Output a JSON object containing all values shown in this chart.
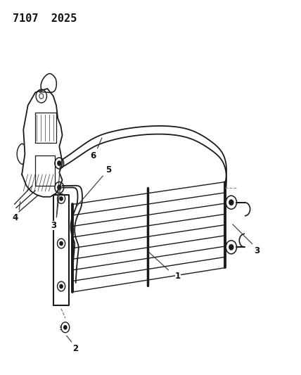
{
  "title": "7107  2025",
  "title_fontsize": 11,
  "title_fontweight": "bold",
  "background_color": "#ffffff",
  "line_color": "#1a1a1a",
  "label_color": "#111111",
  "fig_width": 4.28,
  "fig_height": 5.33,
  "dpi": 100
}
